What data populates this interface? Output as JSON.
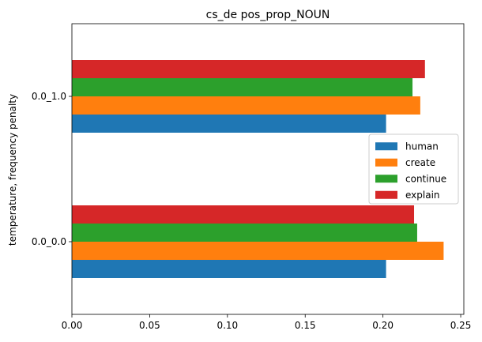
{
  "chart_data": {
    "type": "bar",
    "orientation": "horizontal",
    "title": "cs_de pos_prop_NOUN",
    "xlabel": "",
    "ylabel": "temperature, frequency penalty",
    "categories": [
      "0.0_0.0",
      "0.0_1.0"
    ],
    "series": [
      {
        "name": "human",
        "color": "#1f77b4",
        "values": [
          0.202,
          0.202
        ]
      },
      {
        "name": "create",
        "color": "#ff7f0e",
        "values": [
          0.239,
          0.224
        ]
      },
      {
        "name": "continue",
        "color": "#2ca02c",
        "values": [
          0.222,
          0.219
        ]
      },
      {
        "name": "explain",
        "color": "#d62728",
        "values": [
          0.22,
          0.227
        ]
      }
    ],
    "xlim": [
      0,
      0.252
    ],
    "xticks": [
      0,
      0.05,
      0.1,
      0.15,
      0.2,
      0.25
    ],
    "xtick_labels": [
      "0.00",
      "0.05",
      "0.10",
      "0.15",
      "0.20",
      "0.25"
    ],
    "grid": false,
    "legend_position": "center-right"
  }
}
